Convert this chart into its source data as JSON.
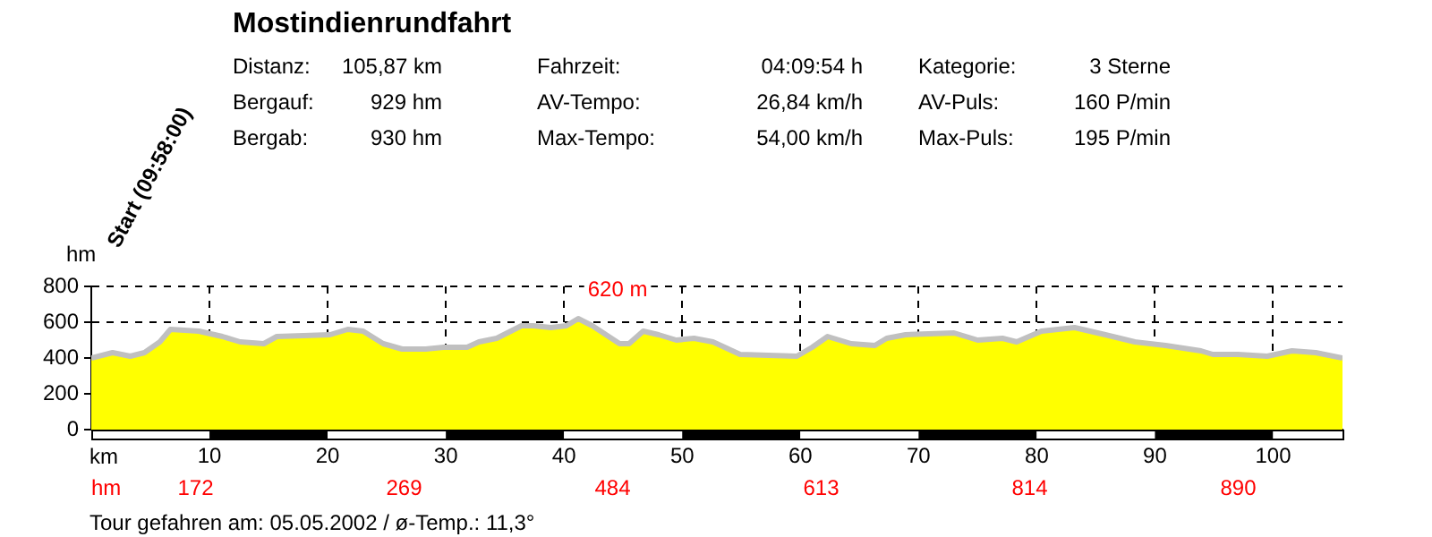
{
  "chart_data": {
    "type": "area",
    "title": "Mostindienrundfahrt",
    "xlabel": "km",
    "ylabel": "hm",
    "x": [
      0,
      1.8,
      3.3,
      4.5,
      5.8,
      6.7,
      9.1,
      11.1,
      12.6,
      14.6,
      15.7,
      20.2,
      21.7,
      23.0,
      24.7,
      26.3,
      28.3,
      29.8,
      31.8,
      32.8,
      34.3,
      36.4,
      37.4,
      38.9,
      40.2,
      41.2,
      42.4,
      44.7,
      45.5,
      46.7,
      48.0,
      49.5,
      51.0,
      52.6,
      54.9,
      59.7,
      61.0,
      62.3,
      64.3,
      66.3,
      67.3,
      68.9,
      73.0,
      75.0,
      77.1,
      78.3,
      80.4,
      83.2,
      85.8,
      88.3,
      90.9,
      93.9,
      94.9,
      97.0,
      99.5,
      101.6,
      103.6,
      105.87
    ],
    "series": [
      {
        "color": "#ffff00",
        "values": [
          400,
          430,
          410,
          430,
          490,
          560,
          550,
          520,
          490,
          480,
          520,
          530,
          560,
          550,
          480,
          450,
          450,
          460,
          460,
          490,
          510,
          580,
          580,
          570,
          580,
          620,
          580,
          480,
          480,
          550,
          530,
          500,
          510,
          490,
          420,
          410,
          460,
          520,
          480,
          470,
          510,
          530,
          540,
          500,
          510,
          490,
          550,
          570,
          530,
          490,
          470,
          440,
          420,
          420,
          410,
          440,
          430,
          400
        ]
      }
    ],
    "xlim": [
      0,
      105.87
    ],
    "xticks": [
      10,
      20,
      30,
      40,
      50,
      60,
      70,
      80,
      90,
      100
    ],
    "ylim": [
      0,
      800
    ],
    "yticks": [
      0,
      200,
      400,
      600,
      800
    ],
    "grid": true,
    "legend": false,
    "annotations": [
      "Distanz:",
      "105,87 km",
      "Fahrzeit:",
      "04:09:54 h",
      "Kategorie:",
      "3 Sterne",
      "Bergauf:",
      "929 hm",
      "AV-Tempo:",
      "26,84 km/h",
      "AV-Puls:",
      "160 P/min",
      "Bergab:",
      "930 hm",
      "Max-Tempo:",
      "54,00 km/h",
      "Max-Puls:",
      "195 P/min",
      "Start (09:58:00)",
      "Tour gefahren am: 05.05.2002  /  ø-Temp.: 11,3°",
      {
        "text": "620 m",
        "x": 41.2,
        "y": 620
      },
      "hm",
      "172",
      "269",
      "484",
      "613",
      "814",
      "890"
    ]
  }
}
